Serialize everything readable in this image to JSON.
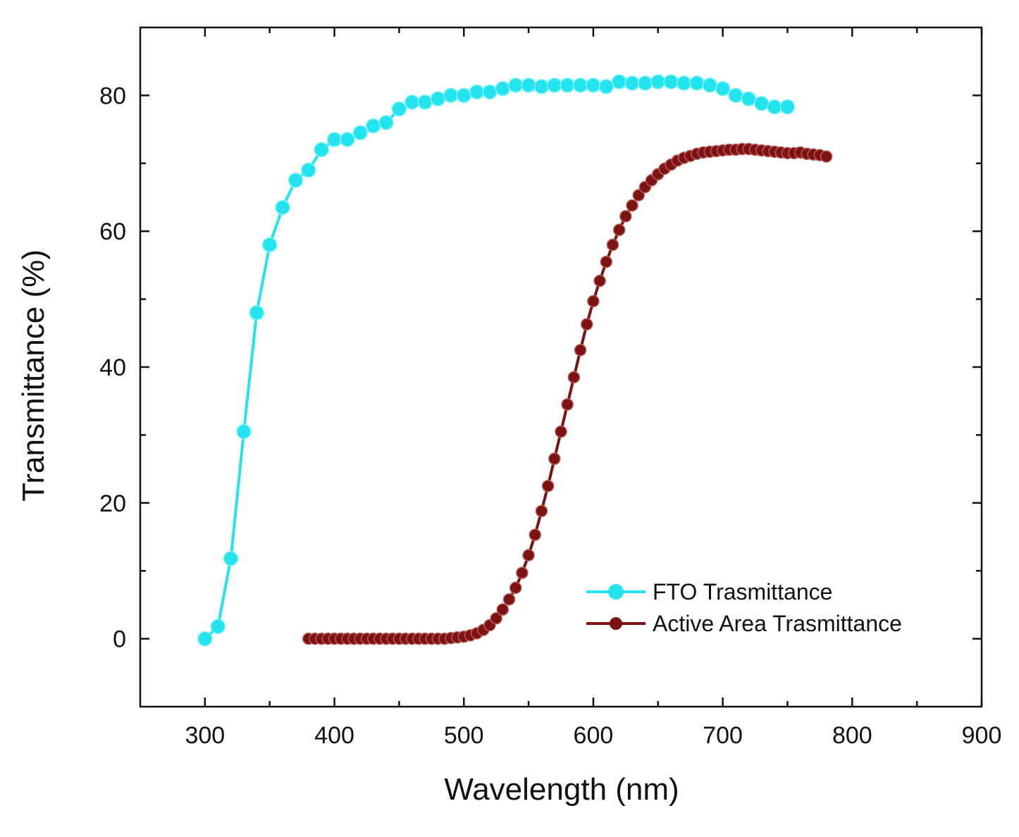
{
  "chart_data": {
    "type": "line",
    "title": "",
    "xlabel": "Wavelength (nm)",
    "ylabel": "Transmittance (%)",
    "xlim": [
      250,
      900
    ],
    "ylim": [
      -10,
      90
    ],
    "xticks": [
      300,
      400,
      500,
      600,
      700,
      800,
      900
    ],
    "yticks": [
      0,
      20,
      40,
      60,
      80
    ],
    "grid": false,
    "legend_position": "bottom-right",
    "series": [
      {
        "name": "FTO Trasmittance",
        "color": "#22e3ee",
        "marker": "circle",
        "x": [
          300,
          310,
          320,
          330,
          340,
          350,
          360,
          370,
          380,
          390,
          400,
          410,
          420,
          430,
          440,
          450,
          460,
          470,
          480,
          490,
          500,
          510,
          520,
          530,
          540,
          550,
          560,
          570,
          580,
          590,
          600,
          610,
          620,
          630,
          640,
          650,
          660,
          670,
          680,
          690,
          700,
          710,
          720,
          730,
          740,
          750
        ],
        "y": [
          0.0,
          1.8,
          11.8,
          30.5,
          48.0,
          58.0,
          63.5,
          67.5,
          69.0,
          72.0,
          73.5,
          73.5,
          74.5,
          75.5,
          76.0,
          78.0,
          79.0,
          79.0,
          79.5,
          80.0,
          80.0,
          80.5,
          80.5,
          81.0,
          81.5,
          81.5,
          81.3,
          81.5,
          81.5,
          81.5,
          81.5,
          81.3,
          82.0,
          81.8,
          81.8,
          82.0,
          82.0,
          81.8,
          81.8,
          81.5,
          81.0,
          80.0,
          79.5,
          78.8,
          78.3,
          78.3
        ]
      },
      {
        "name": "Active Area Trasmittance",
        "color": "#7d1212",
        "marker": "circle",
        "x": [
          380,
          385,
          390,
          395,
          400,
          405,
          410,
          415,
          420,
          425,
          430,
          435,
          440,
          445,
          450,
          455,
          460,
          465,
          470,
          475,
          480,
          485,
          490,
          495,
          500,
          505,
          510,
          515,
          520,
          525,
          530,
          535,
          540,
          545,
          550,
          555,
          560,
          565,
          570,
          575,
          580,
          585,
          590,
          595,
          600,
          605,
          610,
          615,
          620,
          625,
          630,
          635,
          640,
          645,
          650,
          655,
          660,
          665,
          670,
          675,
          680,
          685,
          690,
          695,
          700,
          705,
          710,
          715,
          720,
          725,
          730,
          735,
          740,
          745,
          750,
          755,
          760,
          765,
          770,
          775,
          780
        ],
        "y": [
          0.0,
          0.0,
          0.0,
          0.0,
          0.0,
          0.0,
          0.0,
          0.0,
          0.0,
          0.0,
          0.0,
          0.0,
          0.0,
          0.0,
          0.0,
          0.0,
          0.0,
          0.0,
          0.0,
          0.0,
          0.0,
          0.0,
          0.1,
          0.2,
          0.3,
          0.5,
          0.8,
          1.3,
          2.0,
          3.0,
          4.3,
          5.8,
          7.5,
          9.7,
          12.3,
          15.3,
          18.8,
          22.5,
          26.5,
          30.5,
          34.5,
          38.5,
          42.5,
          46.3,
          49.7,
          52.7,
          55.5,
          58.0,
          60.2,
          62.2,
          63.8,
          65.3,
          66.5,
          67.5,
          68.4,
          69.2,
          69.8,
          70.4,
          70.8,
          71.1,
          71.4,
          71.6,
          71.7,
          71.8,
          71.9,
          72.0,
          72.0,
          72.1,
          72.1,
          72.0,
          71.9,
          71.8,
          71.7,
          71.6,
          71.5,
          71.5,
          71.6,
          71.4,
          71.3,
          71.2,
          71.0
        ]
      }
    ]
  }
}
